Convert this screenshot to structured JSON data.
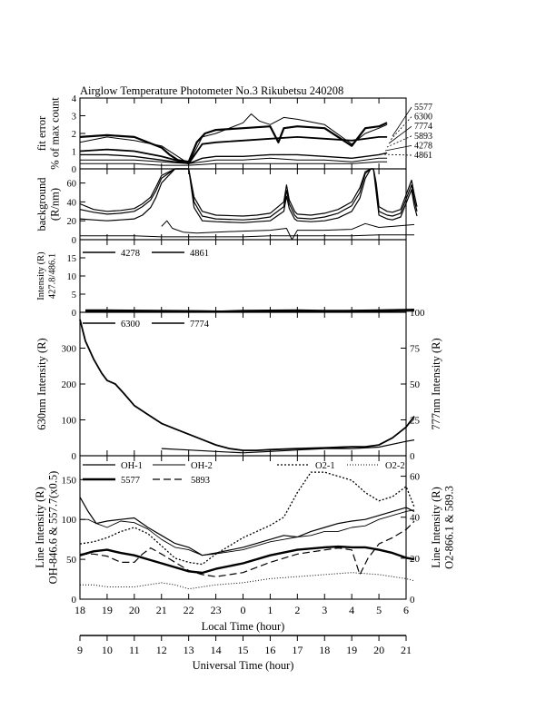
{
  "title": "Airglow Temperature Photometer No.3  Rikubetsu    240208",
  "chart_data": [
    {
      "type": "line",
      "panel": "fit-error",
      "ylabel": [
        "fit error",
        "% of max count"
      ],
      "ylim": [
        0,
        4
      ],
      "yticks": [
        0,
        1,
        2,
        3,
        4
      ],
      "labels_right": [
        "5577",
        "6300",
        "7774",
        "5893",
        "4278",
        "4861"
      ],
      "series": [
        {
          "name": "5577",
          "x": [
            18.0,
            19.0,
            20.0,
            21.0,
            21.3,
            21.6,
            22.0,
            22.3,
            22.6,
            23.0,
            24.0,
            25.0,
            25.3,
            25.5,
            26.0,
            27.0,
            28.0,
            28.5,
            29.0,
            29.3
          ],
          "y": [
            1.8,
            1.9,
            1.8,
            1.2,
            0.8,
            0.5,
            0.4,
            1.5,
            2.0,
            2.2,
            2.3,
            2.4,
            1.5,
            2.3,
            2.4,
            2.3,
            1.3,
            2.3,
            2.4,
            2.6
          ]
        },
        {
          "name": "6300",
          "x": [
            18.0,
            19.0,
            20.0,
            21.0,
            22.0,
            22.5,
            23.0,
            24.0,
            24.3,
            24.6,
            25.0,
            25.5,
            26.0,
            27.0,
            28.0,
            28.5,
            29.0,
            29.3
          ],
          "y": [
            1.5,
            1.8,
            1.6,
            1.3,
            0.3,
            1.8,
            2.0,
            2.6,
            3.1,
            2.7,
            2.5,
            2.9,
            2.8,
            2.5,
            1.4,
            2.0,
            2.3,
            2.5
          ]
        },
        {
          "name": "7774",
          "x": [
            18.0,
            19.0,
            20.0,
            21.0,
            22.0,
            22.5,
            23.0,
            24.0,
            25.0,
            26.0,
            27.0,
            28.0,
            29.0,
            29.3
          ],
          "y": [
            1.0,
            1.1,
            1.0,
            0.7,
            0.3,
            1.4,
            1.5,
            1.6,
            1.7,
            1.8,
            1.7,
            1.6,
            1.8,
            1.8
          ]
        },
        {
          "name": "5893",
          "x": [
            18.0,
            19.0,
            20.0,
            21.0,
            22.0,
            22.5,
            23.0,
            24.0,
            25.0,
            26.0,
            27.0,
            28.0,
            29.0,
            29.3
          ],
          "y": [
            0.8,
            0.8,
            0.7,
            0.5,
            0.3,
            0.6,
            0.7,
            0.7,
            0.8,
            0.8,
            0.7,
            0.6,
            0.8,
            0.9
          ]
        },
        {
          "name": "4278",
          "x": [
            18.0,
            19.0,
            20.0,
            21.0,
            22.0,
            23.0,
            24.0,
            25.0,
            26.0,
            27.0,
            28.0,
            29.0,
            29.3
          ],
          "y": [
            0.5,
            0.5,
            0.5,
            0.4,
            0.3,
            0.5,
            0.5,
            0.6,
            0.5,
            0.5,
            0.4,
            0.6,
            0.6
          ]
        },
        {
          "name": "4861",
          "x": [
            18.0,
            19.0,
            20.0,
            21.0,
            22.0,
            23.0,
            24.0,
            25.0,
            26.0,
            27.0,
            28.0,
            29.0,
            29.3
          ],
          "y": [
            0.3,
            0.3,
            0.3,
            0.2,
            0.2,
            0.3,
            0.3,
            0.3,
            0.3,
            0.3,
            0.3,
            0.4,
            0.4
          ]
        }
      ]
    },
    {
      "type": "line",
      "panel": "background",
      "ylabel": [
        "background",
        "(R/nm)"
      ],
      "ylim": [
        0,
        75
      ],
      "yticks": [
        0,
        20,
        40,
        60
      ],
      "series": [
        {
          "x": [
            18.0,
            18.5,
            19.0,
            19.5,
            20.0,
            20.3,
            20.6,
            20.8,
            21.0,
            21.5,
            21.9,
            22.0,
            22.2,
            22.5,
            23.0,
            24.0,
            24.5,
            25.0,
            25.5,
            25.6,
            25.7,
            25.9,
            26.0,
            26.5,
            27.0,
            27.5,
            28.0,
            28.3,
            28.5,
            28.7,
            28.8,
            28.9,
            29.0,
            29.3,
            29.5,
            29.8,
            30.2,
            30.3,
            30.4
          ],
          "y": [
            38,
            32,
            30,
            31,
            33,
            38,
            45,
            56,
            68,
            75,
            75,
            75,
            45,
            30,
            26,
            25,
            26,
            28,
            40,
            58,
            42,
            30,
            27,
            26,
            28,
            32,
            40,
            55,
            72,
            75,
            75,
            60,
            35,
            30,
            29,
            32,
            63,
            48,
            35
          ]
        },
        {
          "x": [
            18.0,
            18.5,
            19.0,
            19.5,
            20.0,
            20.3,
            20.6,
            20.8,
            21.0,
            21.5,
            21.9,
            22.0,
            22.2,
            22.5,
            23.0,
            24.0,
            24.5,
            25.0,
            25.5,
            25.6,
            25.7,
            25.9,
            26.0,
            26.5,
            27.0,
            27.5,
            28.0,
            28.3,
            28.5,
            28.7,
            28.8,
            28.9,
            29.0,
            29.3,
            29.5,
            29.8,
            30.2,
            30.3,
            30.4
          ],
          "y": [
            32,
            29,
            27,
            28,
            30,
            35,
            42,
            52,
            65,
            75,
            75,
            75,
            40,
            25,
            22,
            21,
            22,
            24,
            35,
            52,
            38,
            26,
            23,
            22,
            24,
            28,
            36,
            50,
            70,
            75,
            75,
            55,
            30,
            26,
            25,
            28,
            58,
            42,
            30
          ]
        },
        {
          "x": [
            18.0,
            18.5,
            19.0,
            19.5,
            20.0,
            20.3,
            20.6,
            20.8,
            21.0,
            21.5,
            21.9,
            22.0,
            22.2,
            22.5,
            23.0,
            24.0,
            24.5,
            25.0,
            25.5,
            25.6,
            25.7,
            25.9,
            26.0,
            26.5,
            27.0,
            27.5,
            28.0,
            28.3,
            28.5,
            28.7,
            28.8,
            28.9,
            29.0,
            29.3,
            29.5,
            29.8,
            30.2,
            30.3,
            30.4
          ],
          "y": [
            22,
            21,
            20,
            21,
            22,
            26,
            34,
            45,
            60,
            75,
            75,
            75,
            34,
            20,
            19,
            18,
            19,
            20,
            30,
            46,
            33,
            22,
            20,
            19,
            20,
            23,
            30,
            44,
            65,
            75,
            75,
            50,
            26,
            22,
            21,
            24,
            53,
            36,
            25
          ]
        },
        {
          "x": [
            21.0,
            21.2,
            21.4,
            21.8,
            22.3,
            23.0,
            24.0,
            25.0,
            25.6,
            25.8,
            26.0,
            27.0,
            28.0,
            28.5,
            29.0,
            29.5,
            30.3
          ],
          "y": [
            14,
            20,
            12,
            8,
            7,
            8,
            9,
            10,
            12,
            0,
            10,
            10,
            11,
            17,
            13,
            14,
            16
          ]
        },
        {
          "x": [
            18.0,
            19.0,
            20.0,
            21.0,
            22.0,
            23.0,
            24.0,
            25.0,
            26.0,
            27.0,
            28.0,
            29.0,
            30.3
          ],
          "y": [
            4,
            4,
            4,
            3,
            3,
            3,
            3,
            4,
            4,
            4,
            4,
            5,
            5
          ]
        }
      ]
    },
    {
      "type": "line",
      "panel": "4278-4861",
      "ylabel": [
        "Intensity (R)",
        "427.8/486.1"
      ],
      "ylim": [
        0,
        20
      ],
      "yticks": [
        0,
        5,
        10,
        15
      ],
      "series": [
        {
          "name": "4278",
          "x": [
            18.2,
            18.9,
            22.4,
            23.2,
            24.0,
            26.0,
            27.0,
            27.8,
            29.0,
            30.3
          ],
          "y": [
            0.6,
            0.6,
            0.4,
            0.3,
            0.5,
            0.6,
            0.5,
            0.5,
            0.6,
            0.8
          ]
        },
        {
          "name": "4861",
          "x": [
            18.2,
            18.9,
            22.4,
            23.2,
            24.0,
            26.0,
            27.0,
            27.8,
            29.0,
            30.3
          ],
          "y": [
            0.3,
            0.3,
            0.2,
            0.1,
            0.2,
            0.3,
            0.2,
            0.2,
            0.3,
            0.4
          ]
        }
      ]
    },
    {
      "type": "line",
      "panel": "6300-7774",
      "ylabel_left": "630nm Intensity (R)",
      "ylabel_right": "777nm Intensity (R)",
      "ylim_left": [
        0,
        400
      ],
      "ylim_right": [
        0,
        100
      ],
      "yticks_left": [
        0,
        100,
        200,
        300
      ],
      "yticks_right": [
        0,
        25,
        50,
        75,
        100
      ],
      "series": [
        {
          "name": "6300",
          "axis": "left",
          "x": [
            18.0,
            18.2,
            18.5,
            18.8,
            19.0,
            19.3,
            19.6,
            20.0,
            20.5,
            21.0,
            21.5,
            22.0,
            22.5,
            23.0,
            23.5,
            24.0,
            24.5,
            25.0,
            26.0,
            27.0,
            28.0,
            28.5,
            29.0,
            29.5,
            30.0,
            30.3
          ],
          "y": [
            380,
            320,
            270,
            230,
            210,
            200,
            175,
            140,
            115,
            90,
            75,
            60,
            45,
            30,
            20,
            15,
            15,
            17,
            20,
            22,
            25,
            25,
            30,
            50,
            80,
            110
          ]
        },
        {
          "name": "7774",
          "axis": "right",
          "x": [
            21.0,
            22.0,
            23.0,
            24.0,
            25.0,
            26.0,
            27.0,
            28.0,
            29.0,
            30.0,
            30.3
          ],
          "y": [
            5,
            4,
            3,
            2,
            3,
            4,
            5,
            5,
            6,
            10,
            11
          ]
        }
      ]
    },
    {
      "type": "line",
      "panel": "OH-O2-5577-5893",
      "ylabel_left": [
        "Line Intensity (R)",
        "OH-846.6 & 557.7(x0.5)"
      ],
      "ylabel_right": [
        "Line Intensity (R)",
        "O2-866.1 & 589.3"
      ],
      "ylim_left": [
        0,
        180
      ],
      "ylim_right": [
        0,
        70
      ],
      "yticks_left": [
        0,
        50,
        100,
        150
      ],
      "yticks_right": [
        0,
        20,
        40,
        60
      ],
      "xlabel": "Local Time (hour)",
      "xticks": [
        "18",
        "19",
        "20",
        "21",
        "22",
        "23",
        "0",
        "1",
        "2",
        "3",
        "4",
        "5",
        "6"
      ],
      "xlim": [
        18,
        30
      ],
      "ut_xlabel": "Universal Time (hour)",
      "ut_xticks": [
        "9",
        "10",
        "11",
        "12",
        "13",
        "14",
        "15",
        "16",
        "17",
        "18",
        "19",
        "20",
        "21"
      ],
      "series": [
        {
          "name": "OH-1",
          "axis": "left",
          "x": [
            18.0,
            18.3,
            18.6,
            19.0,
            19.5,
            20.0,
            20.5,
            21.0,
            21.5,
            22.0,
            22.5,
            23.0,
            24.0,
            25.0,
            25.5,
            26.0,
            26.5,
            27.0,
            27.5,
            28.0,
            28.5,
            29.0,
            29.5,
            30.0,
            30.3
          ],
          "y": [
            128,
            110,
            95,
            98,
            100,
            102,
            90,
            80,
            70,
            65,
            55,
            58,
            65,
            75,
            80,
            78,
            85,
            90,
            95,
            98,
            100,
            105,
            110,
            115,
            110
          ]
        },
        {
          "name": "OH-2",
          "axis": "left",
          "x": [
            18.0,
            18.3,
            18.6,
            19.0,
            19.5,
            20.0,
            20.5,
            21.0,
            21.5,
            22.0,
            22.5,
            23.0,
            24.0,
            25.0,
            25.5,
            26.0,
            26.5,
            27.0,
            27.5,
            28.0,
            28.5,
            29.0,
            29.5,
            30.0,
            30.3
          ],
          "y": [
            100,
            100,
            95,
            90,
            98,
            96,
            88,
            75,
            65,
            62,
            55,
            57,
            62,
            72,
            75,
            78,
            80,
            85,
            85,
            90,
            92,
            100,
            105,
            110,
            112
          ]
        },
        {
          "name": "O2-1",
          "axis": "right",
          "x": [
            18.0,
            18.5,
            19.0,
            19.5,
            20.0,
            20.5,
            21.0,
            21.5,
            22.0,
            22.5,
            23.0,
            24.0,
            25.0,
            25.5,
            26.0,
            26.5,
            27.0,
            27.5,
            28.0,
            28.5,
            29.0,
            29.5,
            30.0,
            30.3
          ],
          "y": [
            27,
            28,
            30,
            33,
            35,
            32,
            26,
            20,
            18,
            17,
            22,
            30,
            36,
            40,
            52,
            62,
            62,
            60,
            58,
            52,
            48,
            50,
            55,
            45
          ]
        },
        {
          "name": "O2-2",
          "axis": "right",
          "x": [
            18.0,
            18.5,
            19.0,
            19.5,
            20.0,
            20.5,
            21.0,
            21.5,
            22.0,
            23.0,
            24.0,
            25.0,
            26.0,
            27.0,
            28.0,
            29.0,
            30.0,
            30.3
          ],
          "y": [
            7,
            7,
            6,
            6,
            6,
            7,
            8,
            7,
            5,
            7,
            8,
            10,
            11,
            12,
            13,
            12,
            10,
            9
          ]
        },
        {
          "name": "5577",
          "axis": "left",
          "x": [
            18.0,
            18.5,
            19.0,
            19.5,
            20.0,
            20.5,
            21.0,
            21.5,
            22.0,
            22.5,
            23.0,
            24.0,
            25.0,
            26.0,
            27.0,
            27.5,
            28.0,
            28.5,
            29.0,
            29.5,
            30.0,
            30.3
          ],
          "y": [
            55,
            60,
            62,
            58,
            55,
            50,
            45,
            40,
            35,
            33,
            38,
            45,
            55,
            62,
            65,
            66,
            65,
            65,
            62,
            58,
            52,
            50
          ]
        },
        {
          "name": "5893",
          "axis": "right",
          "x": [
            18.0,
            18.5,
            19.0,
            19.5,
            20.0,
            20.3,
            20.6,
            21.0,
            21.5,
            22.0,
            22.5,
            23.0,
            24.0,
            25.0,
            26.0,
            27.0,
            27.5,
            28.0,
            28.3,
            28.6,
            29.0,
            29.5,
            30.0,
            30.3
          ],
          "y": [
            22,
            22,
            21,
            18,
            18,
            22,
            25,
            22,
            18,
            14,
            12,
            11,
            13,
            18,
            22,
            24,
            25,
            24,
            12,
            20,
            27,
            30,
            34,
            38
          ]
        }
      ]
    }
  ]
}
